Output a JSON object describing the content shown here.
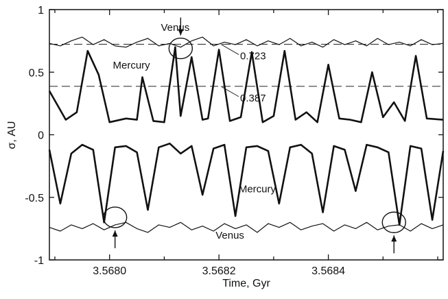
{
  "chart_data": {
    "type": "line",
    "xlabel": "Time,  Gyr",
    "ylabel": "σ, AU",
    "xlim": [
      3.56789,
      3.56861
    ],
    "ylim": [
      -1,
      1
    ],
    "x_ticks": [
      3.568,
      3.5682,
      3.5684
    ],
    "x_tick_labels": [
      "3.5680",
      "3.5682",
      "3.5684"
    ],
    "y_ticks": [
      1,
      0.5,
      0,
      -0.5,
      -1
    ],
    "y_tick_labels": [
      "1",
      "0.5",
      "0",
      "-0.5",
      "-1"
    ],
    "grid": false,
    "reference_lines": [
      {
        "y": 0.723,
        "label": "0.723",
        "style": "dashed"
      },
      {
        "y": 0.387,
        "label": "0.387",
        "style": "dashed"
      }
    ],
    "series": [
      {
        "name": "Venus",
        "style": "thin",
        "x": [
          3.56789,
          3.56791,
          3.56793,
          3.56795,
          3.56797,
          3.56799,
          3.56801,
          3.56803,
          3.56805,
          3.56807,
          3.56809,
          3.56811,
          3.56813,
          3.56815,
          3.56817,
          3.56819,
          3.56821,
          3.56823,
          3.56825,
          3.56827,
          3.56829,
          3.56831,
          3.56833,
          3.56835,
          3.56837,
          3.56839,
          3.56841,
          3.56843,
          3.56845,
          3.56847,
          3.56849,
          3.56851,
          3.56853,
          3.56855,
          3.56857,
          3.56859,
          3.56861
        ],
        "y": [
          0.73,
          0.71,
          0.75,
          0.78,
          0.72,
          0.76,
          0.71,
          0.7,
          0.74,
          0.77,
          0.71,
          0.73,
          0.7,
          0.75,
          0.78,
          0.71,
          0.74,
          0.72,
          0.76,
          0.71,
          0.75,
          0.72,
          0.77,
          0.71,
          0.74,
          0.7,
          0.76,
          0.72,
          0.75,
          0.71,
          0.77,
          0.72,
          0.74,
          0.71,
          0.76,
          0.72,
          0.73
        ]
      },
      {
        "name": "Mercury",
        "style": "thick",
        "x": [
          3.56789,
          3.56792,
          3.56794,
          3.56796,
          3.56798,
          3.568,
          3.56803,
          3.56805,
          3.56806,
          3.56808,
          3.5681,
          3.56812,
          3.56813,
          3.56815,
          3.56817,
          3.56818,
          3.5682,
          3.56822,
          3.56824,
          3.56826,
          3.56828,
          3.5683,
          3.56832,
          3.56834,
          3.56836,
          3.56838,
          3.5684,
          3.56842,
          3.56844,
          3.56846,
          3.56848,
          3.5685,
          3.56852,
          3.56854,
          3.56856,
          3.56858,
          3.56861
        ],
        "y": [
          0.35,
          0.12,
          0.18,
          0.67,
          0.48,
          0.1,
          0.13,
          0.12,
          0.46,
          0.11,
          0.1,
          0.7,
          0.15,
          0.62,
          0.12,
          0.13,
          0.68,
          0.11,
          0.14,
          0.66,
          0.1,
          0.15,
          0.67,
          0.12,
          0.18,
          0.1,
          0.56,
          0.13,
          0.12,
          0.1,
          0.5,
          0.14,
          0.26,
          0.11,
          0.63,
          0.13,
          0.12
        ]
      },
      {
        "name": "Mercury",
        "style": "thick",
        "x": [
          3.56789,
          3.56791,
          3.56793,
          3.56795,
          3.56797,
          3.56799,
          3.56801,
          3.56803,
          3.56805,
          3.56807,
          3.56809,
          3.56811,
          3.56813,
          3.56815,
          3.56817,
          3.56819,
          3.56821,
          3.56823,
          3.56825,
          3.56827,
          3.56829,
          3.56831,
          3.56833,
          3.56835,
          3.56837,
          3.56839,
          3.56841,
          3.56843,
          3.56845,
          3.56847,
          3.56849,
          3.56851,
          3.56853,
          3.56855,
          3.56857,
          3.56859,
          3.56861
        ],
        "y": [
          -0.12,
          -0.55,
          -0.15,
          -0.08,
          -0.12,
          -0.7,
          -0.1,
          -0.09,
          -0.14,
          -0.6,
          -0.1,
          -0.07,
          -0.15,
          -0.09,
          -0.48,
          -0.11,
          -0.08,
          -0.65,
          -0.1,
          -0.09,
          -0.13,
          -0.55,
          -0.1,
          -0.08,
          -0.15,
          -0.62,
          -0.09,
          -0.12,
          -0.45,
          -0.08,
          -0.1,
          -0.14,
          -0.72,
          -0.09,
          -0.11,
          -0.68,
          -0.13
        ]
      },
      {
        "name": "Venus",
        "style": "thin",
        "x": [
          3.56789,
          3.56791,
          3.56793,
          3.56795,
          3.56797,
          3.56799,
          3.56801,
          3.56803,
          3.56805,
          3.56807,
          3.56809,
          3.56811,
          3.56813,
          3.56815,
          3.56817,
          3.56819,
          3.56821,
          3.56823,
          3.56825,
          3.56827,
          3.56829,
          3.56831,
          3.56833,
          3.56835,
          3.56837,
          3.56839,
          3.56841,
          3.56843,
          3.56845,
          3.56847,
          3.56849,
          3.56851,
          3.56853,
          3.56855,
          3.56857,
          3.56859,
          3.56861
        ],
        "y": [
          -0.74,
          -0.77,
          -0.72,
          -0.75,
          -0.71,
          -0.76,
          -0.72,
          -0.7,
          -0.75,
          -0.78,
          -0.72,
          -0.74,
          -0.7,
          -0.76,
          -0.73,
          -0.77,
          -0.71,
          -0.75,
          -0.72,
          -0.78,
          -0.71,
          -0.74,
          -0.7,
          -0.76,
          -0.73,
          -0.71,
          -0.77,
          -0.72,
          -0.75,
          -0.7,
          -0.76,
          -0.73,
          -0.72,
          -0.77,
          -0.71,
          -0.75,
          -0.72
        ]
      }
    ],
    "annotations": [
      {
        "text": "Venus",
        "x": 3.56812,
        "y": 0.83
      },
      {
        "text": "Mercury",
        "x": 3.56804,
        "y": 0.53
      },
      {
        "text": "Mercury",
        "x": 3.56827,
        "y": -0.46
      },
      {
        "text": "Venus",
        "x": 3.56822,
        "y": -0.83
      }
    ],
    "circled_points": [
      {
        "x": 3.56813,
        "y": 0.69,
        "arrow": "down"
      },
      {
        "x": 3.56801,
        "y": -0.66,
        "arrow": "up"
      },
      {
        "x": 3.56852,
        "y": -0.7,
        "arrow": "up"
      }
    ]
  }
}
